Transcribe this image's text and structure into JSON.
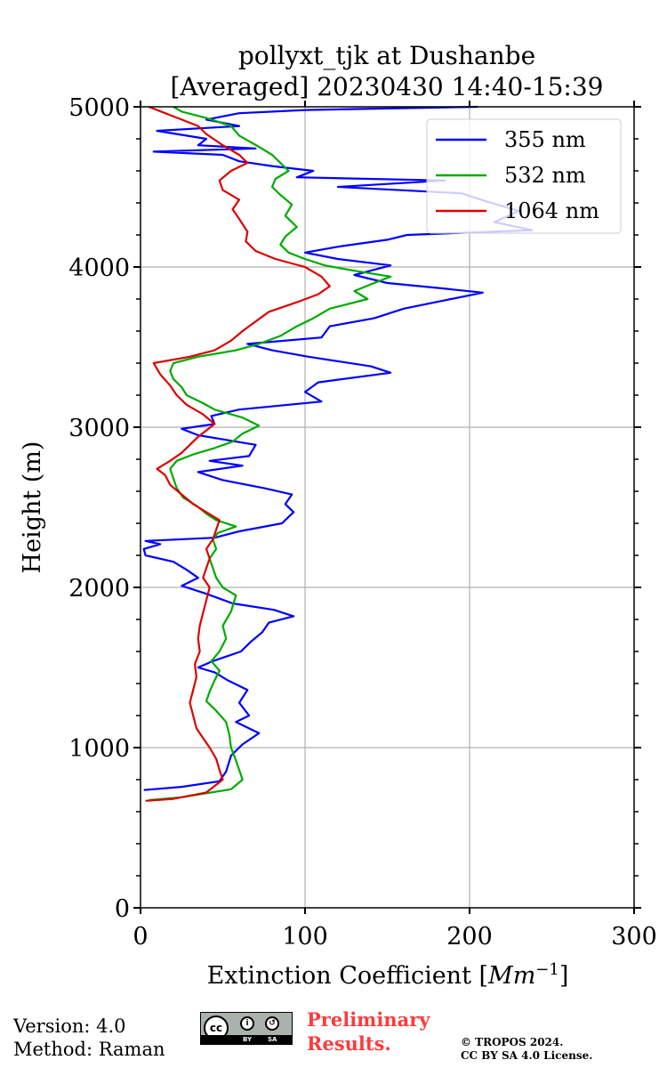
{
  "chart_data": {
    "type": "line",
    "title_line1": "pollyxt_tjk at Dushanbe",
    "title_line2": "[Averaged] 20230430 14:40-15:39",
    "xlabel": "Extinction Coefficient [",
    "xlabel_unit": "Mm",
    "xlabel_exp": "−1",
    "xlabel_close": "]",
    "ylabel": "Height (m)",
    "xlim": [
      0,
      300
    ],
    "ylim": [
      0,
      5000
    ],
    "xticks": [
      0,
      100,
      200,
      300
    ],
    "yticks": [
      0,
      1000,
      2000,
      3000,
      4000,
      5000
    ],
    "xtick_labels": [
      "0",
      "100",
      "200",
      "300"
    ],
    "ytick_labels": [
      "0",
      "1000",
      "2000",
      "3000",
      "4000",
      "5000"
    ],
    "grid": true,
    "legend_position": "top-right",
    "series": [
      {
        "name": "355 nm",
        "color": "#0000ff",
        "points": [
          [
            2,
            735
          ],
          [
            25,
            755
          ],
          [
            48,
            790
          ],
          [
            52,
            850
          ],
          [
            55,
            950
          ],
          [
            62,
            1020
          ],
          [
            72,
            1090
          ],
          [
            58,
            1160
          ],
          [
            66,
            1200
          ],
          [
            60,
            1280
          ],
          [
            65,
            1360
          ],
          [
            53,
            1420
          ],
          [
            45,
            1470
          ],
          [
            35,
            1500
          ],
          [
            44,
            1540
          ],
          [
            61,
            1600
          ],
          [
            67,
            1660
          ],
          [
            74,
            1720
          ],
          [
            78,
            1780
          ],
          [
            93,
            1820
          ],
          [
            81,
            1860
          ],
          [
            56,
            1900
          ],
          [
            40,
            1960
          ],
          [
            25,
            2010
          ],
          [
            35,
            2060
          ],
          [
            28,
            2110
          ],
          [
            20,
            2160
          ],
          [
            3,
            2200
          ],
          [
            2,
            2240
          ],
          [
            12,
            2270
          ],
          [
            3,
            2290
          ],
          [
            45,
            2310
          ],
          [
            60,
            2350
          ],
          [
            86,
            2400
          ],
          [
            93,
            2470
          ],
          [
            88,
            2520
          ],
          [
            92,
            2580
          ],
          [
            75,
            2620
          ],
          [
            50,
            2670
          ],
          [
            35,
            2720
          ],
          [
            62,
            2760
          ],
          [
            42,
            2790
          ],
          [
            66,
            2820
          ],
          [
            70,
            2890
          ],
          [
            35,
            2950
          ],
          [
            25,
            2990
          ],
          [
            45,
            3020
          ],
          [
            43,
            3070
          ],
          [
            60,
            3110
          ],
          [
            110,
            3160
          ],
          [
            100,
            3220
          ],
          [
            108,
            3280
          ],
          [
            152,
            3340
          ],
          [
            140,
            3380
          ],
          [
            102,
            3440
          ],
          [
            80,
            3480
          ],
          [
            65,
            3520
          ],
          [
            110,
            3560
          ],
          [
            115,
            3630
          ],
          [
            142,
            3680
          ],
          [
            160,
            3740
          ],
          [
            208,
            3840
          ],
          [
            180,
            3870
          ],
          [
            150,
            3900
          ],
          [
            130,
            3950
          ],
          [
            152,
            4010
          ],
          [
            120,
            4050
          ],
          [
            100,
            4090
          ],
          [
            122,
            4130
          ],
          [
            150,
            4170
          ],
          [
            162,
            4200
          ],
          [
            238,
            4230
          ],
          [
            215,
            4280
          ],
          [
            230,
            4350
          ],
          [
            210,
            4410
          ],
          [
            195,
            4460
          ],
          [
            120,
            4500
          ],
          [
            185,
            4540
          ],
          [
            95,
            4560
          ],
          [
            105,
            4600
          ],
          [
            80,
            4630
          ],
          [
            60,
            4660
          ],
          [
            50,
            4700
          ],
          [
            8,
            4720
          ],
          [
            70,
            4740
          ],
          [
            35,
            4760
          ],
          [
            40,
            4800
          ],
          [
            10,
            4850
          ],
          [
            60,
            4880
          ],
          [
            40,
            4920
          ],
          [
            60,
            4960
          ],
          [
            100,
            4980
          ],
          [
            205,
            5000
          ]
        ]
      },
      {
        "name": "532 nm",
        "color": "#00aa00",
        "points": [
          [
            5,
            672
          ],
          [
            25,
            690
          ],
          [
            55,
            740
          ],
          [
            62,
            800
          ],
          [
            60,
            860
          ],
          [
            58,
            920
          ],
          [
            55,
            1000
          ],
          [
            54,
            1080
          ],
          [
            52,
            1160
          ],
          [
            46,
            1230
          ],
          [
            40,
            1290
          ],
          [
            42,
            1350
          ],
          [
            45,
            1420
          ],
          [
            48,
            1480
          ],
          [
            43,
            1540
          ],
          [
            48,
            1600
          ],
          [
            52,
            1680
          ],
          [
            50,
            1760
          ],
          [
            55,
            1850
          ],
          [
            58,
            1950
          ],
          [
            50,
            2000
          ],
          [
            46,
            2060
          ],
          [
            44,
            2120
          ],
          [
            42,
            2180
          ],
          [
            46,
            2240
          ],
          [
            44,
            2300
          ],
          [
            47,
            2340
          ],
          [
            58,
            2380
          ],
          [
            46,
            2420
          ],
          [
            40,
            2460
          ],
          [
            34,
            2510
          ],
          [
            26,
            2560
          ],
          [
            22,
            2620
          ],
          [
            20,
            2680
          ],
          [
            18,
            2740
          ],
          [
            22,
            2790
          ],
          [
            32,
            2830
          ],
          [
            45,
            2870
          ],
          [
            56,
            2910
          ],
          [
            62,
            2960
          ],
          [
            72,
            3010
          ],
          [
            62,
            3060
          ],
          [
            45,
            3110
          ],
          [
            38,
            3150
          ],
          [
            28,
            3200
          ],
          [
            25,
            3250
          ],
          [
            20,
            3300
          ],
          [
            18,
            3350
          ],
          [
            20,
            3400
          ],
          [
            35,
            3440
          ],
          [
            58,
            3480
          ],
          [
            72,
            3520
          ],
          [
            85,
            3570
          ],
          [
            95,
            3630
          ],
          [
            105,
            3680
          ],
          [
            115,
            3740
          ],
          [
            138,
            3800
          ],
          [
            130,
            3850
          ],
          [
            142,
            3900
          ],
          [
            152,
            3940
          ],
          [
            128,
            3980
          ],
          [
            112,
            4010
          ],
          [
            100,
            4050
          ],
          [
            90,
            4090
          ],
          [
            85,
            4140
          ],
          [
            88,
            4190
          ],
          [
            95,
            4250
          ],
          [
            88,
            4320
          ],
          [
            92,
            4390
          ],
          [
            85,
            4450
          ],
          [
            80,
            4500
          ],
          [
            82,
            4550
          ],
          [
            90,
            4600
          ],
          [
            85,
            4650
          ],
          [
            80,
            4700
          ],
          [
            72,
            4750
          ],
          [
            60,
            4820
          ],
          [
            55,
            4880
          ],
          [
            40,
            4930
          ],
          [
            25,
            4970
          ],
          [
            20,
            5000
          ]
        ]
      },
      {
        "name": "1064 nm",
        "color": "#dd0000",
        "points": [
          [
            3,
            668
          ],
          [
            20,
            680
          ],
          [
            40,
            720
          ],
          [
            50,
            800
          ],
          [
            48,
            860
          ],
          [
            46,
            930
          ],
          [
            42,
            1000
          ],
          [
            38,
            1060
          ],
          [
            34,
            1120
          ],
          [
            32,
            1200
          ],
          [
            30,
            1280
          ],
          [
            32,
            1360
          ],
          [
            34,
            1440
          ],
          [
            33,
            1520
          ],
          [
            36,
            1600
          ],
          [
            35,
            1680
          ],
          [
            36,
            1760
          ],
          [
            38,
            1840
          ],
          [
            40,
            1920
          ],
          [
            42,
            2000
          ],
          [
            38,
            2060
          ],
          [
            40,
            2120
          ],
          [
            42,
            2180
          ],
          [
            40,
            2240
          ],
          [
            44,
            2300
          ],
          [
            46,
            2360
          ],
          [
            48,
            2420
          ],
          [
            40,
            2470
          ],
          [
            32,
            2520
          ],
          [
            25,
            2580
          ],
          [
            18,
            2640
          ],
          [
            15,
            2700
          ],
          [
            10,
            2740
          ],
          [
            18,
            2790
          ],
          [
            25,
            2840
          ],
          [
            30,
            2890
          ],
          [
            35,
            2940
          ],
          [
            40,
            2980
          ],
          [
            45,
            3020
          ],
          [
            38,
            3080
          ],
          [
            28,
            3140
          ],
          [
            22,
            3200
          ],
          [
            18,
            3260
          ],
          [
            12,
            3330
          ],
          [
            8,
            3400
          ],
          [
            30,
            3440
          ],
          [
            45,
            3480
          ],
          [
            55,
            3540
          ],
          [
            62,
            3600
          ],
          [
            70,
            3660
          ],
          [
            78,
            3720
          ],
          [
            95,
            3780
          ],
          [
            108,
            3830
          ],
          [
            115,
            3880
          ],
          [
            110,
            3940
          ],
          [
            100,
            4000
          ],
          [
            82,
            4050
          ],
          [
            70,
            4100
          ],
          [
            64,
            4160
          ],
          [
            65,
            4220
          ],
          [
            60,
            4300
          ],
          [
            56,
            4360
          ],
          [
            60,
            4420
          ],
          [
            50,
            4480
          ],
          [
            48,
            4540
          ],
          [
            55,
            4600
          ],
          [
            65,
            4650
          ],
          [
            60,
            4700
          ],
          [
            50,
            4760
          ],
          [
            40,
            4830
          ],
          [
            35,
            4880
          ],
          [
            25,
            4920
          ],
          [
            15,
            4960
          ],
          [
            5,
            5000
          ]
        ]
      }
    ]
  },
  "footer": {
    "version": "Version: 4.0",
    "method": "Method: Raman",
    "preliminary_line1": "Preliminary",
    "preliminary_line2": "Results.",
    "copyright_line1": "© TROPOS 2024.",
    "copyright_line2": "CC BY SA 4.0 License.",
    "badge_cc": "cc",
    "badge_by": "BY",
    "badge_sa": "SA"
  }
}
